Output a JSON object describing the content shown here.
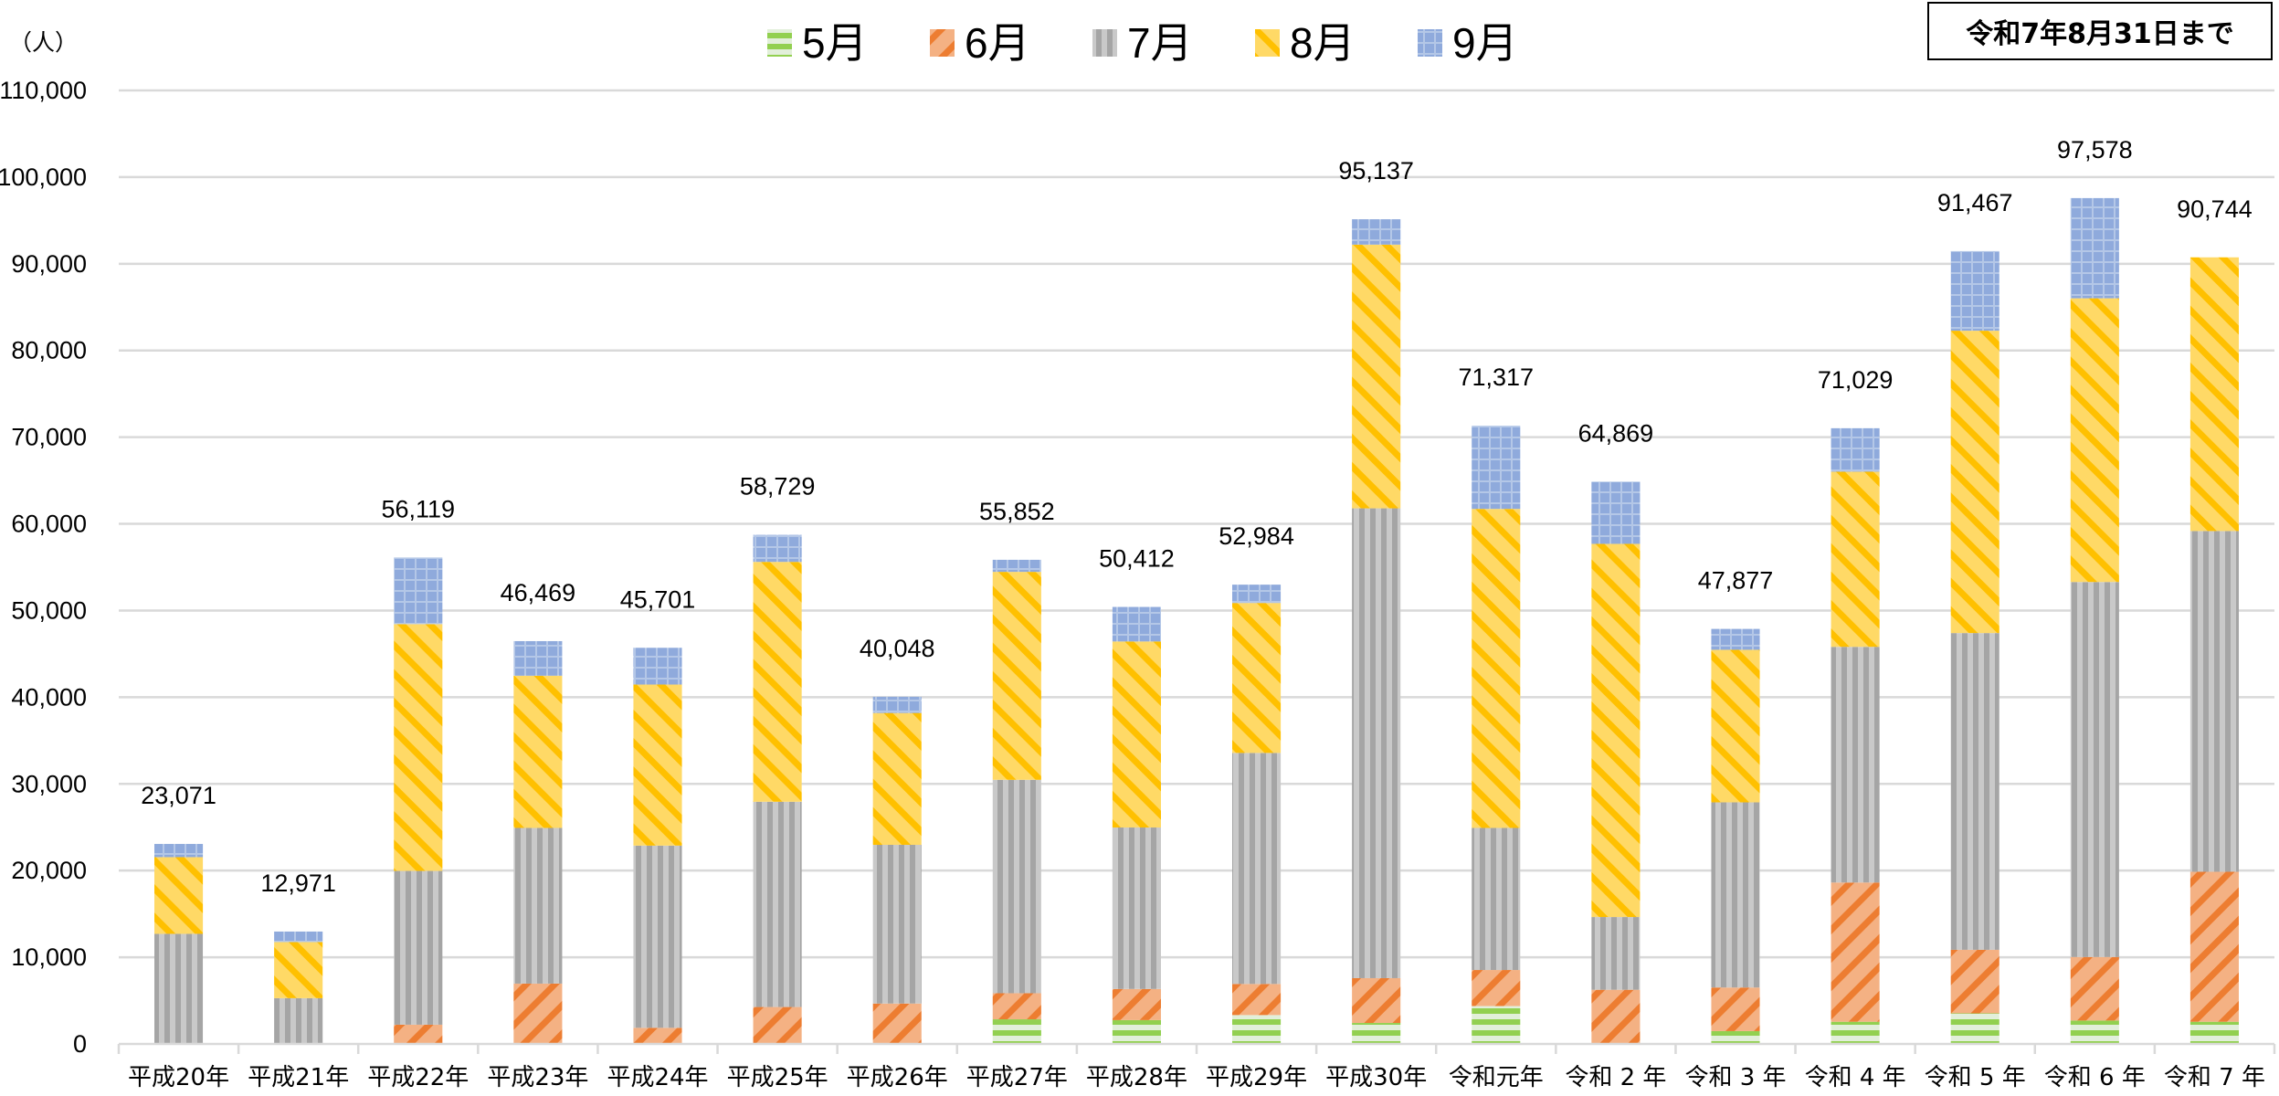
{
  "chart_data": {
    "type": "bar",
    "stacked": true,
    "title": "",
    "ylabel": "（人）",
    "xlabel": "",
    "ylim": [
      0,
      110000
    ],
    "ytick_step": 10000,
    "yticks": [
      "0",
      "10,000",
      "20,000",
      "30,000",
      "40,000",
      "50,000",
      "60,000",
      "70,000",
      "80,000",
      "90,000",
      "100,000",
      "110,000"
    ],
    "grid": true,
    "legend_position": "top-center",
    "note": "令和7年8月31日まで",
    "categories": [
      "平成20年",
      "平成21年",
      "平成22年",
      "平成23年",
      "平成24年",
      "平成25年",
      "平成26年",
      "平成27年",
      "平成28年",
      "平成29年",
      "平成30年",
      "令和元年",
      "令和２年",
      "令和３年",
      "令和４年",
      "令和５年",
      "令和６年",
      "令和７年"
    ],
    "category_display": [
      "平成20年",
      "平成21年",
      "平成22年",
      "平成23年",
      "平成24年",
      "平成25年",
      "平成26年",
      "平成27年",
      "平成28年",
      "平成29年",
      "平成30年",
      "令和元年",
      "令和 2 年",
      "令和 3 年",
      "令和 4 年",
      "令和 5 年",
      "令和 6 年",
      "令和 7 年"
    ],
    "totals": [
      23071,
      12971,
      56119,
      46469,
      45701,
      58729,
      40048,
      55852,
      50412,
      52984,
      95137,
      71317,
      64869,
      47877,
      71029,
      91467,
      97578,
      90744
    ],
    "total_labels": [
      "23,071",
      "12,971",
      "56,119",
      "46,469",
      "45,701",
      "58,729",
      "40,048",
      "55,852",
      "50,412",
      "52,984",
      "95,137",
      "71,317",
      "64,869",
      "47,877",
      "71,029",
      "91,467",
      "97,578",
      "90,744"
    ],
    "series": [
      {
        "name": "5月",
        "color": "#92D050",
        "pattern": "horizontal",
        "values": [
          0,
          0,
          0,
          0,
          0,
          0,
          0,
          2840,
          2750,
          3330,
          2420,
          4370,
          0,
          1480,
          2560,
          3530,
          2700,
          2560
        ]
      },
      {
        "name": "6月",
        "color": "#ED7D31",
        "pattern": "diagonal-down",
        "values": [
          0,
          0,
          2220,
          6960,
          1860,
          4260,
          4660,
          3010,
          3590,
          3590,
          5170,
          4160,
          6250,
          5030,
          16060,
          7330,
          7330,
          17300
        ]
      },
      {
        "name": "7月",
        "color": "#A5A5A5",
        "pattern": "vertical",
        "values": [
          12700,
          5280,
          17740,
          17960,
          21020,
          23680,
          18310,
          24620,
          18630,
          26650,
          54200,
          16390,
          8390,
          21360,
          27190,
          36540,
          43260,
          39310
        ]
      },
      {
        "name": "8月",
        "color": "#FFC000",
        "pattern": "diagonal-up",
        "values": [
          8850,
          6470,
          28470,
          17560,
          18580,
          27670,
          15210,
          23990,
          21460,
          17300,
          30420,
          36800,
          43050,
          17600,
          20210,
          34880,
          32730,
          31574
        ]
      },
      {
        "name": "9月",
        "color": "#8FAADC",
        "pattern": "grid",
        "values": [
          1521,
          1221,
          7689,
          3989,
          4241,
          3119,
          1868,
          1392,
          3982,
          2114,
          2927,
          9597,
          7179,
          2407,
          5009,
          9187,
          11558,
          0
        ]
      }
    ]
  }
}
